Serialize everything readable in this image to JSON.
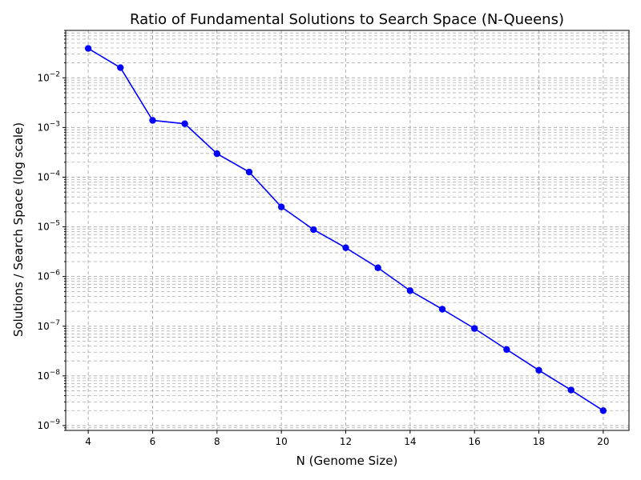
{
  "chart_data": {
    "type": "line",
    "title": "Ratio of Fundamental Solutions to Search Space (N-Queens)",
    "xlabel": "N (Genome Size)",
    "ylabel": "Solutions / Search Space (log scale)",
    "yscale": "log",
    "grid": "both (major and minor), dashed",
    "xlim": [
      3.3,
      20.8
    ],
    "ylim": [
      8e-10,
      0.09
    ],
    "xticks": [
      4,
      6,
      8,
      10,
      12,
      14,
      16,
      18,
      20
    ],
    "yticks": [
      {
        "base": "10",
        "exp": "−9",
        "value": 1e-09
      },
      {
        "base": "10",
        "exp": "−8",
        "value": 1e-08
      },
      {
        "base": "10",
        "exp": "−7",
        "value": 1e-07
      },
      {
        "base": "10",
        "exp": "−6",
        "value": 1e-06
      },
      {
        "base": "10",
        "exp": "−5",
        "value": 1e-05
      },
      {
        "base": "10",
        "exp": "−4",
        "value": 0.0001
      },
      {
        "base": "10",
        "exp": "−3",
        "value": 0.001
      },
      {
        "base": "10",
        "exp": "−2",
        "value": 0.01
      }
    ],
    "series": [
      {
        "color": "#0000ff",
        "marker": "circle",
        "x": [
          4,
          5,
          6,
          7,
          8,
          9,
          10,
          11,
          12,
          13,
          14,
          15,
          16,
          17,
          18,
          19,
          20
        ],
        "y": [
          0.039,
          0.016,
          0.00139,
          0.00119,
          0.000297,
          0.000127,
          2.52e-05,
          8.8e-06,
          3.8e-06,
          1.5e-06,
          5.2e-07,
          2.2e-07,
          9e-08,
          3.4e-08,
          1.3e-08,
          5.2e-09,
          2e-09
        ]
      }
    ]
  }
}
